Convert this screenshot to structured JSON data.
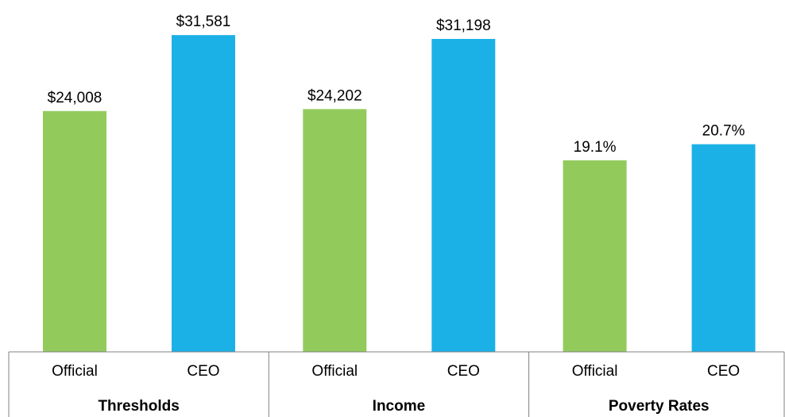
{
  "chart_data": [
    {
      "type": "bar",
      "categories": [
        "Thresholds",
        "Income"
      ],
      "series": [
        {
          "name": "Official",
          "color": "#92cb5c",
          "values": [
            24008,
            24202
          ],
          "value_labels": [
            "$24,008",
            "$24,202"
          ]
        },
        {
          "name": "CEO",
          "color": "#1bb1e7",
          "values": [
            31581,
            31198
          ],
          "value_labels": [
            "$31,581",
            "$31,198"
          ]
        }
      ],
      "ylim": [
        0,
        35000
      ]
    },
    {
      "type": "bar",
      "categories": [
        "Poverty Rates"
      ],
      "series": [
        {
          "name": "Official",
          "color": "#92cb5c",
          "values": [
            19.1
          ],
          "value_labels": [
            "19.1%"
          ]
        },
        {
          "name": "CEO",
          "color": "#1bb1e7",
          "values": [
            20.7
          ],
          "value_labels": [
            "20.7%"
          ]
        }
      ],
      "ylim": [
        0,
        35
      ]
    }
  ]
}
